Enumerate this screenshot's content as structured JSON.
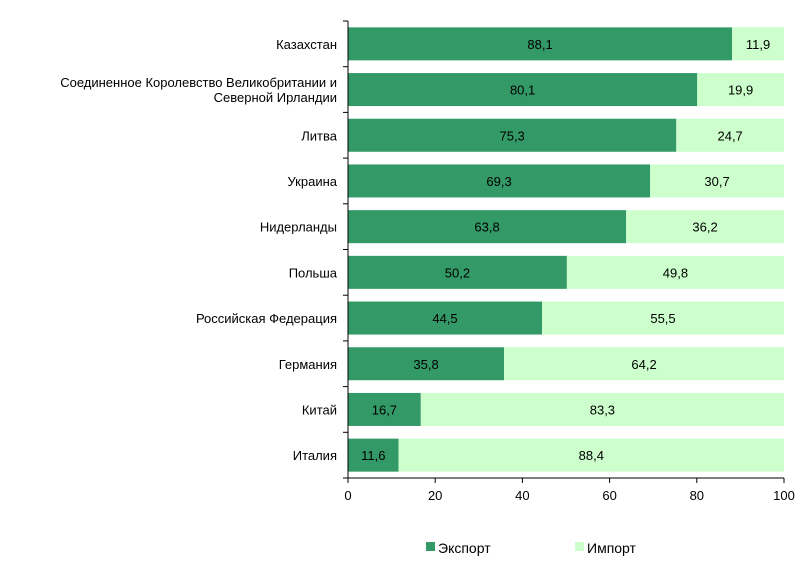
{
  "chart_data": {
    "type": "bar",
    "orientation": "horizontal",
    "stacked": true,
    "categories": [
      [
        "Казахстан"
      ],
      [
        "Соединенное Королевство Великобритании и",
        "Северной Ирландии"
      ],
      [
        "Литва"
      ],
      [
        "Украина"
      ],
      [
        "Нидерланды"
      ],
      [
        "Польша"
      ],
      [
        "Российская Федерация"
      ],
      [
        "Германия"
      ],
      [
        "Китай"
      ],
      [
        "Италия"
      ]
    ],
    "series": [
      {
        "name": "Экспорт",
        "color": "#339966",
        "values": [
          88.1,
          80.1,
          75.3,
          69.3,
          63.8,
          50.2,
          44.5,
          35.8,
          16.7,
          11.6
        ],
        "labels": [
          "88,1",
          "80,1",
          "75,3",
          "69,3",
          "63,8",
          "50,2",
          "44,5",
          "35,8",
          "16,7",
          "11,6"
        ]
      },
      {
        "name": "Импорт",
        "color": "#CCFFCC",
        "values": [
          11.9,
          19.9,
          24.7,
          30.7,
          36.2,
          49.8,
          55.5,
          64.2,
          83.3,
          88.4
        ],
        "labels": [
          "11,9",
          "19,9",
          "24,7",
          "30,7",
          "36,2",
          "49,8",
          "55,5",
          "64,2",
          "83,3",
          "88,4"
        ]
      }
    ],
    "xlim": [
      0,
      100
    ],
    "xticks": [
      0,
      20,
      40,
      60,
      80,
      100
    ],
    "xtick_labels": [
      "0",
      "20",
      "40",
      "60",
      "80",
      "100"
    ],
    "grid": false,
    "legend": "bottom"
  }
}
